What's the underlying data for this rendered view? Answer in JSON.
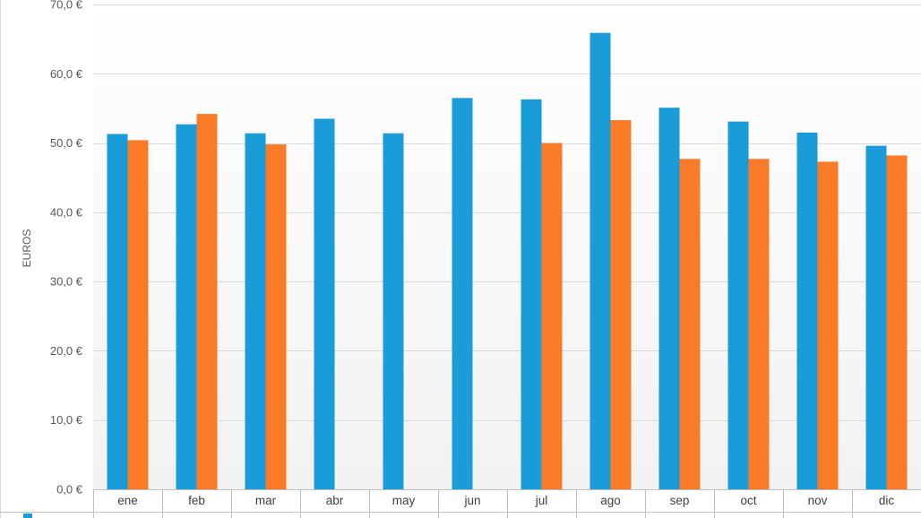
{
  "chart_data": {
    "type": "bar",
    "title": "",
    "xlabel": "",
    "ylabel": "EUROS",
    "ylim": [
      0,
      70
    ],
    "yticks": [
      "0,0 €",
      "10,0 €",
      "20,0 €",
      "30,0 €",
      "40,0 €",
      "50,0 €",
      "60,0 €",
      "70,0 €"
    ],
    "categories": [
      "ene",
      "feb",
      "mar",
      "abr",
      "may",
      "jun",
      "jul",
      "ago",
      "sep",
      "oct",
      "nov",
      "dic"
    ],
    "series": [
      {
        "color": "#1a9cd8",
        "values": [
          51.3,
          52.7,
          51.4,
          53.5,
          51.4,
          56.5,
          56.3,
          65.9,
          55.1,
          53.1,
          51.5,
          49.6
        ]
      },
      {
        "color": "#f97b27",
        "values": [
          50.4,
          54.2,
          49.8,
          null,
          null,
          null,
          50.0,
          53.3,
          47.7,
          47.7,
          47.3,
          48.2
        ]
      }
    ],
    "grid": true,
    "legend": "bottom"
  }
}
